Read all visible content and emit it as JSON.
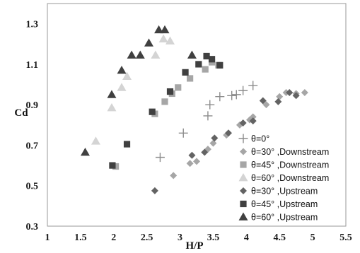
{
  "chart_data": {
    "type": "scatter",
    "title": "",
    "xlabel": "H/P",
    "ylabel": "Cd",
    "xlim": [
      1,
      5.5
    ],
    "ylim": [
      0.3,
      1.4
    ],
    "x_ticks": [
      "1",
      "1.5",
      "2",
      "2.5",
      "3",
      "3.5",
      "4",
      "4.5",
      "5",
      "5.5"
    ],
    "y_ticks": [
      "0.3",
      "0.5",
      "0.7",
      "0.9",
      "1.1",
      "1.3"
    ],
    "legend_position": "right",
    "series": [
      {
        "name": "θ=0°",
        "marker": "plus",
        "color": "#8c8c8c",
        "points": [
          [
            2.7,
            0.64
          ],
          [
            3.05,
            0.76
          ],
          [
            3.42,
            0.845
          ],
          [
            3.45,
            0.9
          ],
          [
            3.6,
            0.94
          ],
          [
            3.78,
            0.945
          ],
          [
            3.85,
            0.95
          ],
          [
            3.95,
            0.97
          ],
          [
            4.1,
            0.995
          ]
        ]
      },
      {
        "name": "θ=30° ,Downstream",
        "marker": "diamond",
        "color": "#a6a6a6",
        "points": [
          [
            2.9,
            0.55
          ],
          [
            3.15,
            0.61
          ],
          [
            3.25,
            0.62
          ],
          [
            3.42,
            0.68
          ],
          [
            3.5,
            0.71
          ],
          [
            3.7,
            0.75
          ],
          [
            3.9,
            0.8
          ],
          [
            4.05,
            0.825
          ],
          [
            4.1,
            0.84
          ],
          [
            4.3,
            0.9
          ],
          [
            4.5,
            0.94
          ],
          [
            4.6,
            0.96
          ],
          [
            4.75,
            0.955
          ],
          [
            4.88,
            0.96
          ]
        ]
      },
      {
        "name": "θ=45° ,Downstream",
        "marker": "square",
        "color": "#a6a6a6",
        "points": [
          [
            2.03,
            0.595
          ],
          [
            2.62,
            0.855
          ],
          [
            2.77,
            0.915
          ],
          [
            2.88,
            0.955
          ],
          [
            2.97,
            0.985
          ],
          [
            3.15,
            1.03
          ],
          [
            3.38,
            1.075
          ],
          [
            3.48,
            1.11
          ],
          [
            3.58,
            1.095
          ]
        ]
      },
      {
        "name": "θ=60° ,Downstream",
        "marker": "triangle",
        "color": "#d4d4d4",
        "points": [
          [
            1.73,
            0.72
          ],
          [
            1.97,
            0.885
          ],
          [
            2.12,
            0.985
          ],
          [
            2.2,
            1.04
          ],
          [
            2.63,
            1.145
          ],
          [
            2.75,
            1.225
          ],
          [
            2.85,
            1.215
          ]
        ]
      },
      {
        "name": "θ=30° ,Upstream",
        "marker": "diamond",
        "color": "#636363",
        "points": [
          [
            2.62,
            0.475
          ],
          [
            3.18,
            0.65
          ],
          [
            3.37,
            0.665
          ],
          [
            3.52,
            0.735
          ],
          [
            3.73,
            0.76
          ],
          [
            3.95,
            0.81
          ],
          [
            4.1,
            0.82
          ],
          [
            4.25,
            0.92
          ],
          [
            4.48,
            0.915
          ],
          [
            4.65,
            0.96
          ],
          [
            4.75,
            0.945
          ]
        ]
      },
      {
        "name": "θ=45° ,Upstream",
        "marker": "square",
        "color": "#404040",
        "points": [
          [
            1.98,
            0.6
          ],
          [
            2.2,
            0.705
          ],
          [
            2.58,
            0.865
          ],
          [
            2.85,
            0.965
          ],
          [
            3.08,
            1.06
          ],
          [
            3.28,
            1.1
          ],
          [
            3.4,
            1.14
          ],
          [
            3.48,
            1.125
          ],
          [
            3.6,
            1.095
          ]
        ]
      },
      {
        "name": "θ=60° ,Upstream",
        "marker": "triangle",
        "color": "#404040",
        "points": [
          [
            1.57,
            0.665
          ],
          [
            1.97,
            0.95
          ],
          [
            2.12,
            1.07
          ],
          [
            2.27,
            1.145
          ],
          [
            2.4,
            1.145
          ],
          [
            2.53,
            1.205
          ],
          [
            2.68,
            1.27
          ],
          [
            2.77,
            1.27
          ],
          [
            3.18,
            1.145
          ]
        ]
      }
    ]
  }
}
